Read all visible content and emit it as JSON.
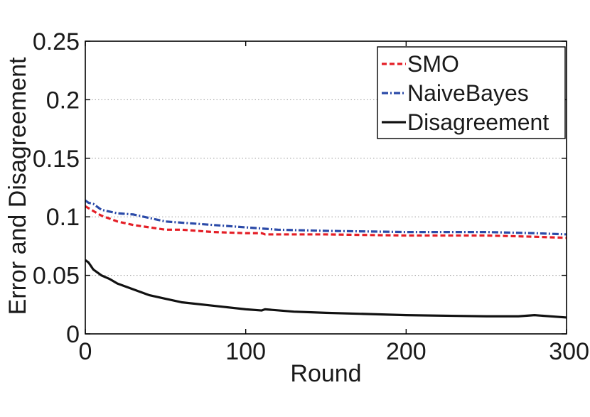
{
  "chart_data": {
    "type": "line",
    "title": "",
    "xlabel": "Round",
    "ylabel": "Error and Disagreement",
    "xlim": [
      0,
      300
    ],
    "ylim": [
      0,
      0.25
    ],
    "xticks": [
      0,
      100,
      200,
      300
    ],
    "xtick_labels": [
      "0",
      "100",
      "200",
      "300"
    ],
    "yticks": [
      0,
      0.05,
      0.1,
      0.15,
      0.2,
      0.25
    ],
    "ytick_labels": [
      "0",
      "0.05",
      "0.1",
      "0.15",
      "0.2",
      "0.25"
    ],
    "grid": "horizontal-dotted",
    "legend_position": "top-right",
    "series": [
      {
        "name": "SMO",
        "color": "#e41e26",
        "style": "dashed",
        "x": [
          0,
          5,
          10,
          20,
          30,
          40,
          50,
          60,
          80,
          100,
          110,
          112,
          150,
          200,
          250,
          280,
          300
        ],
        "y": [
          0.109,
          0.105,
          0.101,
          0.096,
          0.093,
          0.091,
          0.089,
          0.089,
          0.087,
          0.086,
          0.086,
          0.085,
          0.085,
          0.084,
          0.084,
          0.083,
          0.082
        ]
      },
      {
        "name": "NaiveBayes",
        "color": "#2b4aa8",
        "style": "dashdot",
        "x": [
          0,
          2,
          5,
          10,
          20,
          30,
          40,
          50,
          60,
          80,
          100,
          120,
          150,
          200,
          250,
          280,
          300
        ],
        "y": [
          0.114,
          0.112,
          0.111,
          0.106,
          0.103,
          0.102,
          0.099,
          0.096,
          0.095,
          0.093,
          0.091,
          0.089,
          0.088,
          0.087,
          0.087,
          0.086,
          0.085
        ]
      },
      {
        "name": "Disagreement",
        "color": "#111111",
        "style": "solid",
        "x": [
          0,
          2,
          5,
          10,
          15,
          20,
          30,
          40,
          50,
          60,
          80,
          100,
          110,
          112,
          130,
          150,
          200,
          250,
          270,
          280,
          300
        ],
        "y": [
          0.063,
          0.061,
          0.055,
          0.05,
          0.047,
          0.043,
          0.038,
          0.033,
          0.03,
          0.027,
          0.024,
          0.021,
          0.02,
          0.021,
          0.019,
          0.018,
          0.016,
          0.015,
          0.015,
          0.016,
          0.014
        ]
      }
    ]
  }
}
